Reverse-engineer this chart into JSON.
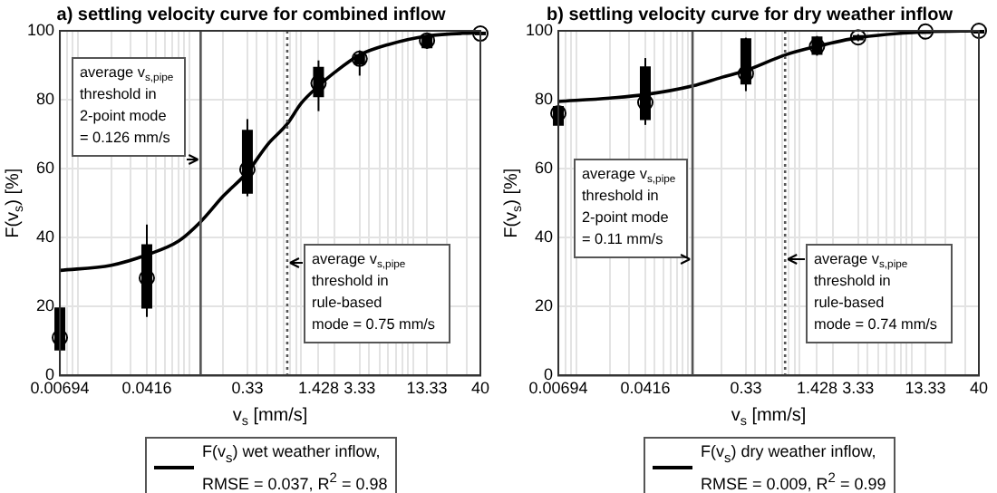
{
  "chart_data": [
    {
      "type": "line",
      "title": "a) settling velocity curve for combined inflow",
      "xlabel": "v$_{s}$ [mm/s]",
      "ylabel": "F(v$_{s}$) [%]",
      "log": "x",
      "xlim": [
        0.00694,
        40
      ],
      "xticks": [
        0.00694,
        0.0416,
        0.33,
        1.428,
        3.33,
        13.33,
        40,
        {
          "value": 0.008,
          "label": null
        },
        {
          "value": 0.009,
          "label": null
        },
        {
          "value": 0.01,
          "label": null
        },
        {
          "value": 0.02,
          "label": null
        },
        {
          "value": 0.03,
          "label": null
        },
        {
          "value": 0.05,
          "label": null
        },
        {
          "value": 0.06,
          "label": null
        },
        {
          "value": 0.07,
          "label": null
        },
        {
          "value": 0.08,
          "label": null
        },
        {
          "value": 0.09,
          "label": null
        },
        {
          "value": 0.1,
          "label": null
        },
        {
          "value": 0.2,
          "label": null
        },
        {
          "value": 0.4,
          "label": null
        },
        {
          "value": 0.5,
          "label": null
        },
        {
          "value": 0.6,
          "label": null
        },
        {
          "value": 0.7,
          "label": null
        },
        {
          "value": 0.8,
          "label": null
        },
        {
          "value": 0.9,
          "label": null
        },
        {
          "value": 1,
          "label": null
        },
        {
          "value": 2,
          "label": null
        },
        {
          "value": 4,
          "label": null
        },
        {
          "value": 5,
          "label": null
        },
        {
          "value": 6,
          "label": null
        },
        {
          "value": 7,
          "label": null
        },
        {
          "value": 8,
          "label": null
        },
        {
          "value": 9,
          "label": null
        },
        {
          "value": 10,
          "label": null
        },
        {
          "value": 20,
          "label": null
        },
        {
          "value": 30,
          "label": null
        }
      ],
      "ylim": [
        0,
        100
      ],
      "yticks": [
        0,
        20,
        40,
        60,
        80,
        100
      ],
      "grid": true,
      "legend": "bottom",
      "series": [
        {
          "name": "F(v$_{s}$) wet weather inflow,\nRMSE = 0.037, R$^{2}$ = 0.98",
          "color": "#000000",
          "x": [
            0.00694,
            0.02,
            0.0416,
            0.08,
            0.126,
            0.2,
            0.33,
            0.5,
            0.75,
            1,
            1.428,
            2,
            3.33,
            6,
            13.33,
            40
          ],
          "values": [
            30.5,
            32,
            35,
            39,
            44.6,
            52,
            59,
            67,
            73,
            79,
            84,
            88,
            93,
            96,
            98.5,
            99.5
          ]
        },
        {
          "type": "box",
          "color": "#000000",
          "x": [
            0.00694,
            0.0416,
            0.33,
            1.428,
            3.33,
            13.33,
            40
          ],
          "boxes": [
            {
              "low": 6,
              "q1": 7.5,
              "median": 11,
              "q3": 19.5,
              "high": 20
            },
            {
              "low": 17,
              "q1": 19.7,
              "median": 28.3,
              "q3": 37.8,
              "high": 43.8
            },
            {
              "low": 52,
              "q1": 53,
              "median": 59.8,
              "q3": 71,
              "high": 74.4
            },
            {
              "low": 76.7,
              "q1": 81,
              "median": 84.8,
              "q3": 89.3,
              "high": 91.4
            },
            {
              "low": 87,
              "q1": 90.5,
              "median": 91.9,
              "q3": 93,
              "high": 94.3
            },
            {
              "low": 94.8,
              "q1": 95.2,
              "median": 97.2,
              "q3": 98.3,
              "high": 98.5
            },
            {
              "low": 99,
              "q1": 99,
              "median": 99.2,
              "q3": 99.5,
              "high": 100
            }
          ]
        }
      ],
      "ref_lines": [
        {
          "axis": "x",
          "value": 0.126,
          "label": "average v$_{s,pipe}$\nthreshold in\n2-point mode\n= 0.126 mm/s",
          "color": "#555555",
          "line_style": "solid"
        },
        {
          "axis": "x",
          "value": 0.75,
          "label": "average v$_{s,pipe}$\nthreshold in\nrule-based\nmode = 0.75 mm/s",
          "color": "#555555",
          "line_style": "dotted"
        }
      ]
    },
    {
      "type": "line",
      "title": "b) settling velocity curve for dry weather inflow",
      "xlabel": "v$_{s}$ [mm/s]",
      "ylabel": "F(v$_{s}$) [%]",
      "log": "x",
      "xlim": [
        0.00694,
        40
      ],
      "xticks": [
        0.00694,
        0.0416,
        0.33,
        1.428,
        3.33,
        13.33,
        40,
        {
          "value": 0.008,
          "label": null
        },
        {
          "value": 0.009,
          "label": null
        },
        {
          "value": 0.01,
          "label": null
        },
        {
          "value": 0.02,
          "label": null
        },
        {
          "value": 0.03,
          "label": null
        },
        {
          "value": 0.05,
          "label": null
        },
        {
          "value": 0.06,
          "label": null
        },
        {
          "value": 0.07,
          "label": null
        },
        {
          "value": 0.08,
          "label": null
        },
        {
          "value": 0.09,
          "label": null
        },
        {
          "value": 0.1,
          "label": null
        },
        {
          "value": 0.2,
          "label": null
        },
        {
          "value": 0.4,
          "label": null
        },
        {
          "value": 0.5,
          "label": null
        },
        {
          "value": 0.6,
          "label": null
        },
        {
          "value": 0.7,
          "label": null
        },
        {
          "value": 0.8,
          "label": null
        },
        {
          "value": 0.9,
          "label": null
        },
        {
          "value": 1,
          "label": null
        },
        {
          "value": 2,
          "label": null
        },
        {
          "value": 4,
          "label": null
        },
        {
          "value": 5,
          "label": null
        },
        {
          "value": 6,
          "label": null
        },
        {
          "value": 7,
          "label": null
        },
        {
          "value": 8,
          "label": null
        },
        {
          "value": 9,
          "label": null
        },
        {
          "value": 10,
          "label": null
        },
        {
          "value": 20,
          "label": null
        },
        {
          "value": 30,
          "label": null
        }
      ],
      "ylim": [
        0,
        100
      ],
      "yticks": [
        0,
        20,
        40,
        60,
        80,
        100
      ],
      "grid": true,
      "legend": "bottom",
      "series": [
        {
          "name": "F(v$_{s}$) dry weather inflow,\nRMSE = 0.009, R$^{2}$ = 0.99",
          "color": "#000000",
          "x": [
            0.00694,
            0.02,
            0.0416,
            0.11,
            0.2,
            0.33,
            0.74,
            1.428,
            3.33,
            13.33,
            40
          ],
          "values": [
            79.5,
            80.5,
            81.5,
            84,
            86.5,
            88.5,
            93,
            95.5,
            98,
            99.7,
            100
          ]
        },
        {
          "type": "box",
          "color": "#000000",
          "x": [
            0.00694,
            0.0416,
            0.33,
            1.428,
            3.33,
            13.33,
            40
          ],
          "boxes": [
            {
              "low": 72,
              "q1": 72.7,
              "median": 76.1,
              "q3": 77.9,
              "high": 78
            },
            {
              "low": 72.7,
              "q1": 74.4,
              "median": 79.2,
              "q3": 89.4,
              "high": 92.1
            },
            {
              "low": 82.5,
              "q1": 84.7,
              "median": 87.6,
              "q3": 97.6,
              "high": 98
            },
            {
              "low": 92.8,
              "q1": 93.3,
              "median": 95.5,
              "q3": 98.1,
              "high": 98.5
            },
            {
              "low": 97,
              "q1": 97.5,
              "median": 98.1,
              "q3": 98.5,
              "high": 99
            },
            {
              "low": 99.5,
              "q1": 99.6,
              "median": 99.8,
              "q3": 99.9,
              "high": 100
            },
            {
              "low": 99.5,
              "q1": 99.8,
              "median": 100,
              "q3": 100,
              "high": 100
            }
          ]
        }
      ],
      "ref_lines": [
        {
          "axis": "x",
          "value": 0.11,
          "label": "average v$_{s,pipe}$\nthreshold in\n2-point mode\n= 0.11 mm/s",
          "color": "#555555",
          "line_style": "solid"
        },
        {
          "axis": "x",
          "value": 0.74,
          "label": "average v$_{s,pipe}$\nthreshold in\nrule-based\nmode = 0.74 mm/s",
          "color": "#555555",
          "line_style": "dotted"
        }
      ]
    }
  ]
}
